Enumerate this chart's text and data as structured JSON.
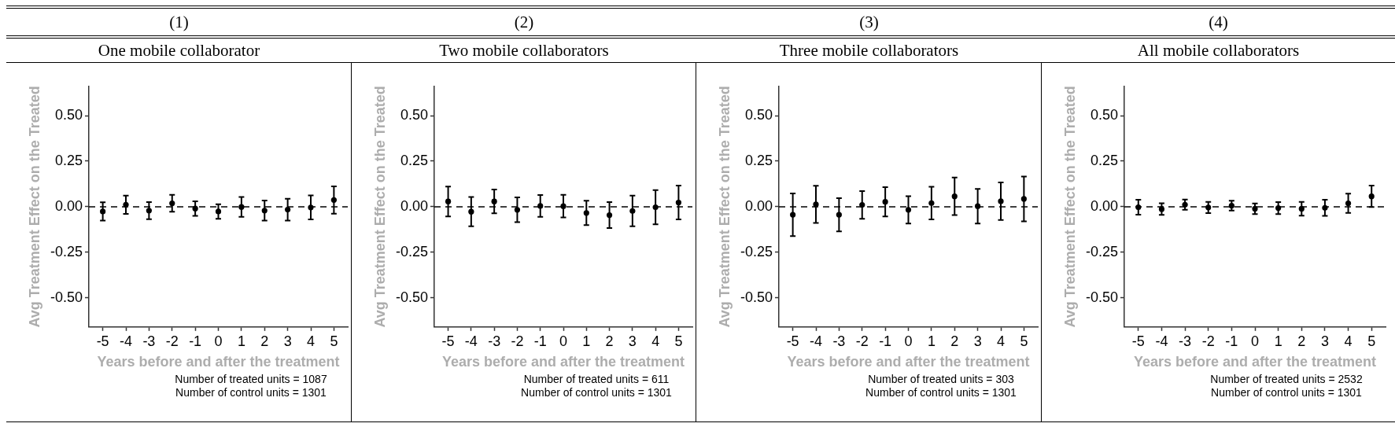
{
  "chart_data": [
    {
      "type": "scatter",
      "title": "(1)",
      "subtitle": "One mobile collaborator",
      "xlabel": "Years before and after the treatment",
      "ylabel": "Avg Treatment Effect on the Treated",
      "x": [
        -5,
        -4,
        -3,
        -2,
        -1,
        0,
        1,
        2,
        3,
        4,
        5
      ],
      "values": [
        -0.026,
        0.011,
        -0.021,
        0.019,
        -0.01,
        -0.026,
        -0.001,
        -0.021,
        -0.016,
        -0.004,
        0.037
      ],
      "errors": [
        0.05,
        0.05,
        0.047,
        0.046,
        0.04,
        0.04,
        0.054,
        0.055,
        0.06,
        0.066,
        0.075
      ],
      "color": "#000000",
      "marker": "circle",
      "xlim": [
        -5.6,
        5.6
      ],
      "xticks": [
        -5,
        -4,
        -3,
        -2,
        -1,
        0,
        1,
        2,
        3,
        4,
        5
      ],
      "ylim": [
        -0.66,
        0.66
      ],
      "yticks": [
        {
          "value": -0.5,
          "label": "-0.50"
        },
        {
          "value": -0.25,
          "label": "-0.25"
        },
        {
          "value": 0,
          "label": "0.00"
        },
        {
          "value": 0.25,
          "label": "0.25"
        },
        {
          "value": 0.5,
          "label": "0.50"
        }
      ],
      "ref_lines": [
        {
          "axis": "y",
          "value": 0,
          "color": "#000000",
          "line_style": "dashed"
        }
      ],
      "grid": false,
      "legend": false,
      "annotations": [
        "Number of treated units = 1087",
        "Number of control units = 1301"
      ]
    },
    {
      "type": "scatter",
      "title": "(2)",
      "subtitle": "Two mobile collaborators",
      "xlabel": "Years before and after the treatment",
      "ylabel": "Avg Treatment Effect on the Treated",
      "x": [
        -5,
        -4,
        -3,
        -2,
        -1,
        0,
        1,
        2,
        3,
        4,
        5
      ],
      "values": [
        0.029,
        -0.027,
        0.029,
        -0.017,
        0.004,
        0.003,
        -0.034,
        -0.046,
        -0.023,
        -0.003,
        0.023
      ],
      "errors": [
        0.082,
        0.08,
        0.065,
        0.068,
        0.06,
        0.062,
        0.067,
        0.071,
        0.084,
        0.094,
        0.093
      ],
      "color": "#000000",
      "marker": "circle",
      "xlim": [
        -5.6,
        5.6
      ],
      "xticks": [
        -5,
        -4,
        -3,
        -2,
        -1,
        0,
        1,
        2,
        3,
        4,
        5
      ],
      "ylim": [
        -0.66,
        0.66
      ],
      "yticks": [
        {
          "value": -0.5,
          "label": "-0.50"
        },
        {
          "value": -0.25,
          "label": "-0.25"
        },
        {
          "value": 0,
          "label": "0.00"
        },
        {
          "value": 0.25,
          "label": "0.25"
        },
        {
          "value": 0.5,
          "label": "0.50"
        }
      ],
      "ref_lines": [
        {
          "axis": "y",
          "value": 0,
          "color": "#000000",
          "line_style": "dashed"
        }
      ],
      "grid": false,
      "legend": false,
      "annotations": [
        "Number of treated units = 611",
        "Number of control units = 1301"
      ]
    },
    {
      "type": "scatter",
      "title": "(3)",
      "subtitle": "Three mobile collaborators",
      "xlabel": "Years before and after the treatment",
      "ylabel": "Avg Treatment Effect on the Treated",
      "x": [
        -5,
        -4,
        -3,
        -2,
        -1,
        0,
        1,
        2,
        3,
        4,
        5
      ],
      "values": [
        -0.044,
        0.013,
        -0.044,
        0.01,
        0.027,
        -0.017,
        0.02,
        0.057,
        0.003,
        0.03,
        0.043
      ],
      "errors": [
        0.117,
        0.102,
        0.091,
        0.076,
        0.08,
        0.075,
        0.09,
        0.103,
        0.095,
        0.103,
        0.123
      ],
      "color": "#000000",
      "marker": "circle",
      "xlim": [
        -5.6,
        5.6
      ],
      "xticks": [
        -5,
        -4,
        -3,
        -2,
        -1,
        0,
        1,
        2,
        3,
        4,
        5
      ],
      "ylim": [
        -0.66,
        0.66
      ],
      "yticks": [
        {
          "value": -0.5,
          "label": "-0.50"
        },
        {
          "value": -0.25,
          "label": "-0.25"
        },
        {
          "value": 0,
          "label": "0.00"
        },
        {
          "value": 0.25,
          "label": "0.25"
        },
        {
          "value": 0.5,
          "label": "0.50"
        }
      ],
      "ref_lines": [
        {
          "axis": "y",
          "value": 0,
          "color": "#000000",
          "line_style": "dashed"
        }
      ],
      "grid": false,
      "legend": false,
      "annotations": [
        "Number of treated units = 303",
        "Number of control units = 1301"
      ]
    },
    {
      "type": "scatter",
      "title": "(4)",
      "subtitle": "All mobile collaborators",
      "xlabel": "Years before and after the treatment",
      "ylabel": "Avg Treatment Effect on the Treated",
      "x": [
        -5,
        -4,
        -3,
        -2,
        -1,
        0,
        1,
        2,
        3,
        4,
        5
      ],
      "values": [
        -0.003,
        -0.013,
        0.011,
        -0.004,
        0.006,
        -0.011,
        -0.007,
        -0.011,
        -0.006,
        0.019,
        0.057
      ],
      "errors": [
        0.041,
        0.032,
        0.028,
        0.031,
        0.027,
        0.029,
        0.033,
        0.038,
        0.044,
        0.053,
        0.059
      ],
      "color": "#000000",
      "marker": "circle",
      "xlim": [
        -5.6,
        5.6
      ],
      "xticks": [
        -5,
        -4,
        -3,
        -2,
        -1,
        0,
        1,
        2,
        3,
        4,
        5
      ],
      "ylim": [
        -0.66,
        0.66
      ],
      "yticks": [
        {
          "value": -0.5,
          "label": "-0.50"
        },
        {
          "value": -0.25,
          "label": "-0.25"
        },
        {
          "value": 0,
          "label": "0.00"
        },
        {
          "value": 0.25,
          "label": "0.25"
        },
        {
          "value": 0.5,
          "label": "0.50"
        }
      ],
      "ref_lines": [
        {
          "axis": "y",
          "value": 0,
          "color": "#000000",
          "line_style": "dashed"
        }
      ],
      "grid": false,
      "legend": false,
      "annotations": [
        "Number of treated units = 2532",
        "Number of control units = 1301"
      ]
    }
  ]
}
